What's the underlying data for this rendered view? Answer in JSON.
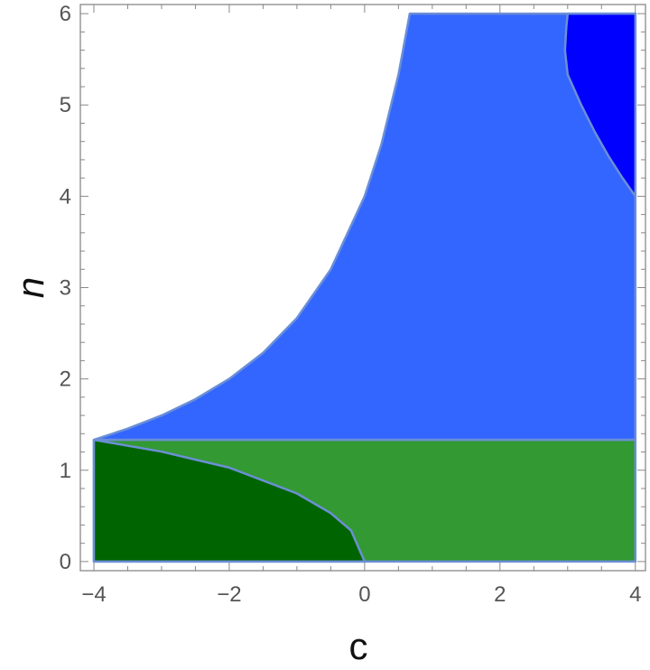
{
  "chart_data": {
    "type": "region",
    "xlabel": "c",
    "ylabel": "n",
    "xlim": [
      -4.2,
      4.15
    ],
    "ylim": [
      -0.1,
      6.1
    ],
    "x_ticks": [
      {
        "value": -4,
        "label": "−4"
      },
      {
        "value": -2,
        "label": "−2"
      },
      {
        "value": 0,
        "label": "0"
      },
      {
        "value": 2,
        "label": "2"
      },
      {
        "value": 4,
        "label": "4"
      }
    ],
    "y_ticks": [
      {
        "value": 0,
        "label": "0"
      },
      {
        "value": 1,
        "label": "1"
      },
      {
        "value": 2,
        "label": "2"
      },
      {
        "value": 3,
        "label": "3"
      },
      {
        "value": 4,
        "label": "4"
      },
      {
        "value": 5,
        "label": "5"
      },
      {
        "value": 6,
        "label": "6"
      }
    ],
    "grid": false,
    "colors": {
      "light_blue": "#3366ff",
      "dark_blue": "#0000ff",
      "light_green": "#339933",
      "dark_green": "#006400",
      "edge": "#6b8fd6"
    },
    "regions": [
      {
        "color": "#3366ff",
        "points": [
          [
            -4,
            1.333
          ],
          [
            -3.5,
            1.455
          ],
          [
            -3,
            1.6
          ],
          [
            -2.5,
            1.778
          ],
          [
            -2,
            2.0
          ],
          [
            -1.5,
            2.286
          ],
          [
            -1,
            2.667
          ],
          [
            -0.5,
            3.2
          ],
          [
            0,
            4.0
          ],
          [
            0.25,
            4.571
          ],
          [
            0.5,
            5.333
          ],
          [
            0.667,
            6.0
          ],
          [
            4,
            6.0
          ],
          [
            4,
            1.333
          ]
        ]
      },
      {
        "color": "#0000ff",
        "points": [
          [
            3.0,
            6.0
          ],
          [
            4,
            6.0
          ],
          [
            4,
            4.0
          ],
          [
            3.8,
            4.211
          ],
          [
            3.6,
            4.444
          ],
          [
            3.4,
            4.706
          ],
          [
            3.2,
            5.0
          ],
          [
            3.0,
            5.333
          ],
          [
            2.96,
            5.6
          ],
          [
            2.98,
            5.85
          ]
        ]
      },
      {
        "color": "#339933",
        "points": [
          [
            -4,
            0
          ],
          [
            4,
            0
          ],
          [
            4,
            1.333
          ],
          [
            -4,
            1.333
          ]
        ]
      },
      {
        "color": "#006400",
        "points": [
          [
            -4,
            0
          ],
          [
            -4,
            1.333
          ],
          [
            -3,
            1.203
          ],
          [
            -2,
            1.028
          ],
          [
            -1,
            0.745
          ],
          [
            -0.5,
            0.53
          ],
          [
            -0.2,
            0.34
          ],
          [
            0,
            0
          ]
        ]
      }
    ]
  }
}
